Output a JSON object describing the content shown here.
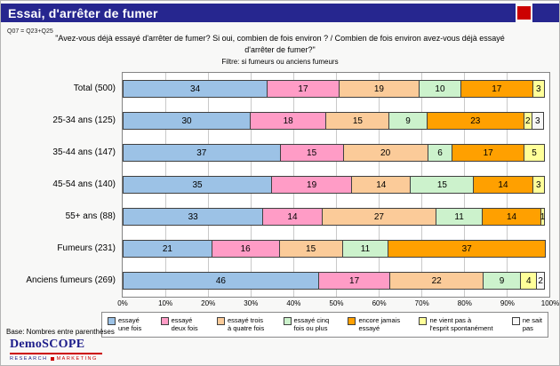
{
  "header": {
    "title": "Essai, d'arrêter de fumer",
    "bar_color": "#26268f",
    "accent_red": "#cc0000"
  },
  "meta": {
    "question_code": "Q07 = Q23+Q25",
    "question_text": "\"Avez-vous déjà essayé d'arrêter de fumer? Si oui, combien de fois environ ? / Combien de fois environ avez-vous déjà essayé d'arrêter de fumer?\"",
    "filter_text": "Filtre: si fumeurs ou anciens fumeurs"
  },
  "chart_data": {
    "type": "bar",
    "orientation": "horizontal",
    "stacked": true,
    "unit": "percent",
    "xlim": [
      0,
      100
    ],
    "grid": true,
    "legend_position": "bottom",
    "x_ticks": [
      "0%",
      "10%",
      "20%",
      "30%",
      "40%",
      "50%",
      "60%",
      "70%",
      "80%",
      "90%",
      "100%"
    ],
    "categories": [
      "Total (500)",
      "25-34 ans (125)",
      "35-44 ans (147)",
      "45-54 ans (140)",
      "55+ ans (88)",
      "Fumeurs (231)",
      "Anciens fumeurs (269)"
    ],
    "series": [
      {
        "name": "essayé une fois",
        "legend_lines": [
          "essayé",
          "une fois"
        ],
        "color": "#9cc2e6",
        "values": [
          34,
          30,
          37,
          35,
          33,
          21,
          46
        ]
      },
      {
        "name": "essayé deux fois",
        "legend_lines": [
          "essayé",
          "deux fois"
        ],
        "color": "#ff9cc6",
        "values": [
          17,
          18,
          15,
          19,
          14,
          16,
          17
        ]
      },
      {
        "name": "essayé trois à quatre fois",
        "legend_lines": [
          "essayé trois",
          "à quatre fois"
        ],
        "color": "#fbcb99",
        "values": [
          19,
          15,
          20,
          14,
          27,
          15,
          22
        ]
      },
      {
        "name": "essayé cinq fois ou plus",
        "legend_lines": [
          "essayé cinq",
          "fois ou plus"
        ],
        "color": "#ccf2cc",
        "values": [
          10,
          9,
          6,
          15,
          11,
          11,
          9
        ]
      },
      {
        "name": "encore jamais essayé",
        "legend_lines": [
          "encore jamais",
          "essayé"
        ],
        "color": "#ffa000",
        "values": [
          17,
          23,
          17,
          14,
          14,
          37,
          0
        ]
      },
      {
        "name": "ne vient pas à l'esprit spontanément",
        "legend_lines": [
          "ne vient pas à",
          "l'esprit spontanément"
        ],
        "color": "#ffff99",
        "values": [
          3,
          2,
          5,
          3,
          1,
          0,
          4
        ]
      },
      {
        "name": "ne sait pas",
        "legend_lines": [
          "ne sait",
          "pas"
        ],
        "color": "#f7f7f7",
        "values": [
          0,
          3,
          0,
          0,
          0,
          0,
          2
        ]
      }
    ]
  },
  "footer": {
    "base_note": "Base: Nombres entre parenthèses",
    "logo_name": "DemoSCOPE",
    "logo_sub_left": "RESEARCH",
    "logo_sub_right": "MARKETING"
  }
}
